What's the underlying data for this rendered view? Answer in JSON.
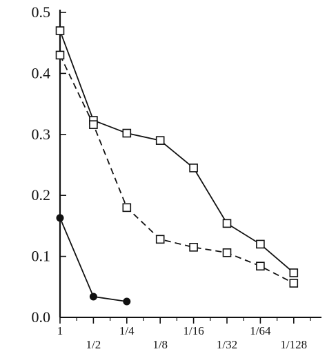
{
  "chart_data": {
    "type": "line",
    "title": "",
    "xlabel": "",
    "ylabel": "",
    "ylim": [
      0,
      0.5
    ],
    "y_ticks": [
      {
        "value": 0.0,
        "label": "0.0"
      },
      {
        "value": 0.1,
        "label": "0.1"
      },
      {
        "value": 0.2,
        "label": "0.2"
      },
      {
        "value": 0.3,
        "label": "0.3"
      },
      {
        "value": 0.4,
        "label": "0.4"
      },
      {
        "value": 0.5,
        "label": "0.5"
      }
    ],
    "categories": [
      "1",
      "1/2",
      "1/4",
      "1/8",
      "1/16",
      "1/32",
      "1/64",
      "1/128"
    ],
    "x_label_rows": [
      "upper",
      "lower",
      "upper",
      "lower",
      "upper",
      "lower",
      "upper",
      "lower"
    ],
    "grid": false,
    "legend": "none",
    "series": [
      {
        "marker": "open-square",
        "line_style": "solid",
        "color": "#111111",
        "values": [
          0.47,
          0.323,
          0.302,
          0.29,
          0.245,
          0.154,
          0.12,
          0.073
        ]
      },
      {
        "marker": "open-square",
        "line_style": "dashed",
        "color": "#111111",
        "values": [
          0.43,
          0.316,
          0.18,
          0.128,
          0.115,
          0.106,
          0.084,
          0.056
        ]
      },
      {
        "marker": "filled-circle",
        "line_style": "solid",
        "color": "#111111",
        "values": [
          0.163,
          0.034,
          0.026,
          null,
          null,
          null,
          null,
          null
        ]
      }
    ]
  }
}
